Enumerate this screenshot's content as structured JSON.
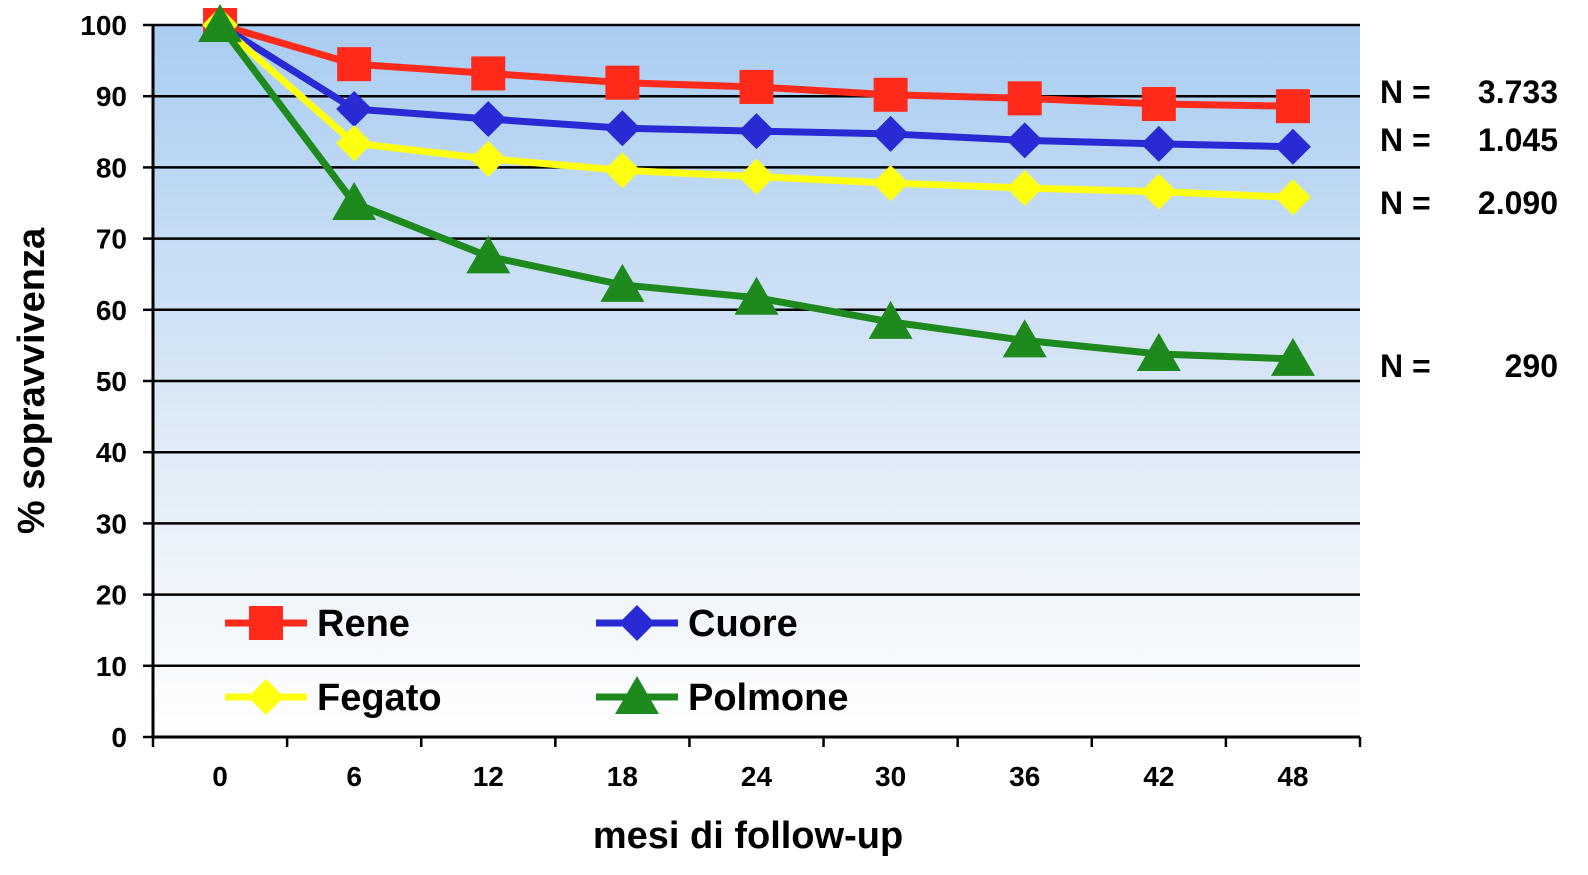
{
  "chart_data": {
    "type": "line",
    "title": "",
    "xlabel": "mesi di follow-up",
    "ylabel": "% sopravvivenza",
    "x": [
      0,
      6,
      12,
      18,
      24,
      30,
      36,
      42,
      48
    ],
    "xlim": [
      -3,
      51
    ],
    "ylim": [
      0,
      100
    ],
    "yticks": [
      0,
      10,
      20,
      30,
      40,
      50,
      60,
      70,
      80,
      90,
      100
    ],
    "grid": true,
    "legend_position": "bottom-left",
    "series": [
      {
        "name": "Rene",
        "color": "#ff2a1a",
        "marker": "square",
        "values": [
          100,
          94.5,
          93.2,
          91.9,
          91.3,
          90.2,
          89.7,
          88.9,
          88.6
        ]
      },
      {
        "name": "Cuore",
        "color": "#2a2ad4",
        "marker": "diamond",
        "values": [
          100,
          88.2,
          86.8,
          85.5,
          85.1,
          84.7,
          83.8,
          83.3,
          82.9
        ]
      },
      {
        "name": "Fegato",
        "color": "#ffff10",
        "marker": "diamond",
        "values": [
          100,
          83.4,
          81.2,
          79.6,
          78.7,
          77.8,
          77.1,
          76.6,
          75.8
        ]
      },
      {
        "name": "Polmone",
        "color": "#1e8a1e",
        "marker": "triangle",
        "values": [
          100,
          75.0,
          67.5,
          63.5,
          61.7,
          58.3,
          55.7,
          53.8,
          53.1
        ]
      }
    ],
    "annotations": [
      {
        "label": "N =",
        "value": "3.733"
      },
      {
        "label": "N =",
        "value": "1.045"
      },
      {
        "label": "N =",
        "value": "2.090"
      },
      {
        "label": "N =",
        "value": "290"
      }
    ]
  }
}
